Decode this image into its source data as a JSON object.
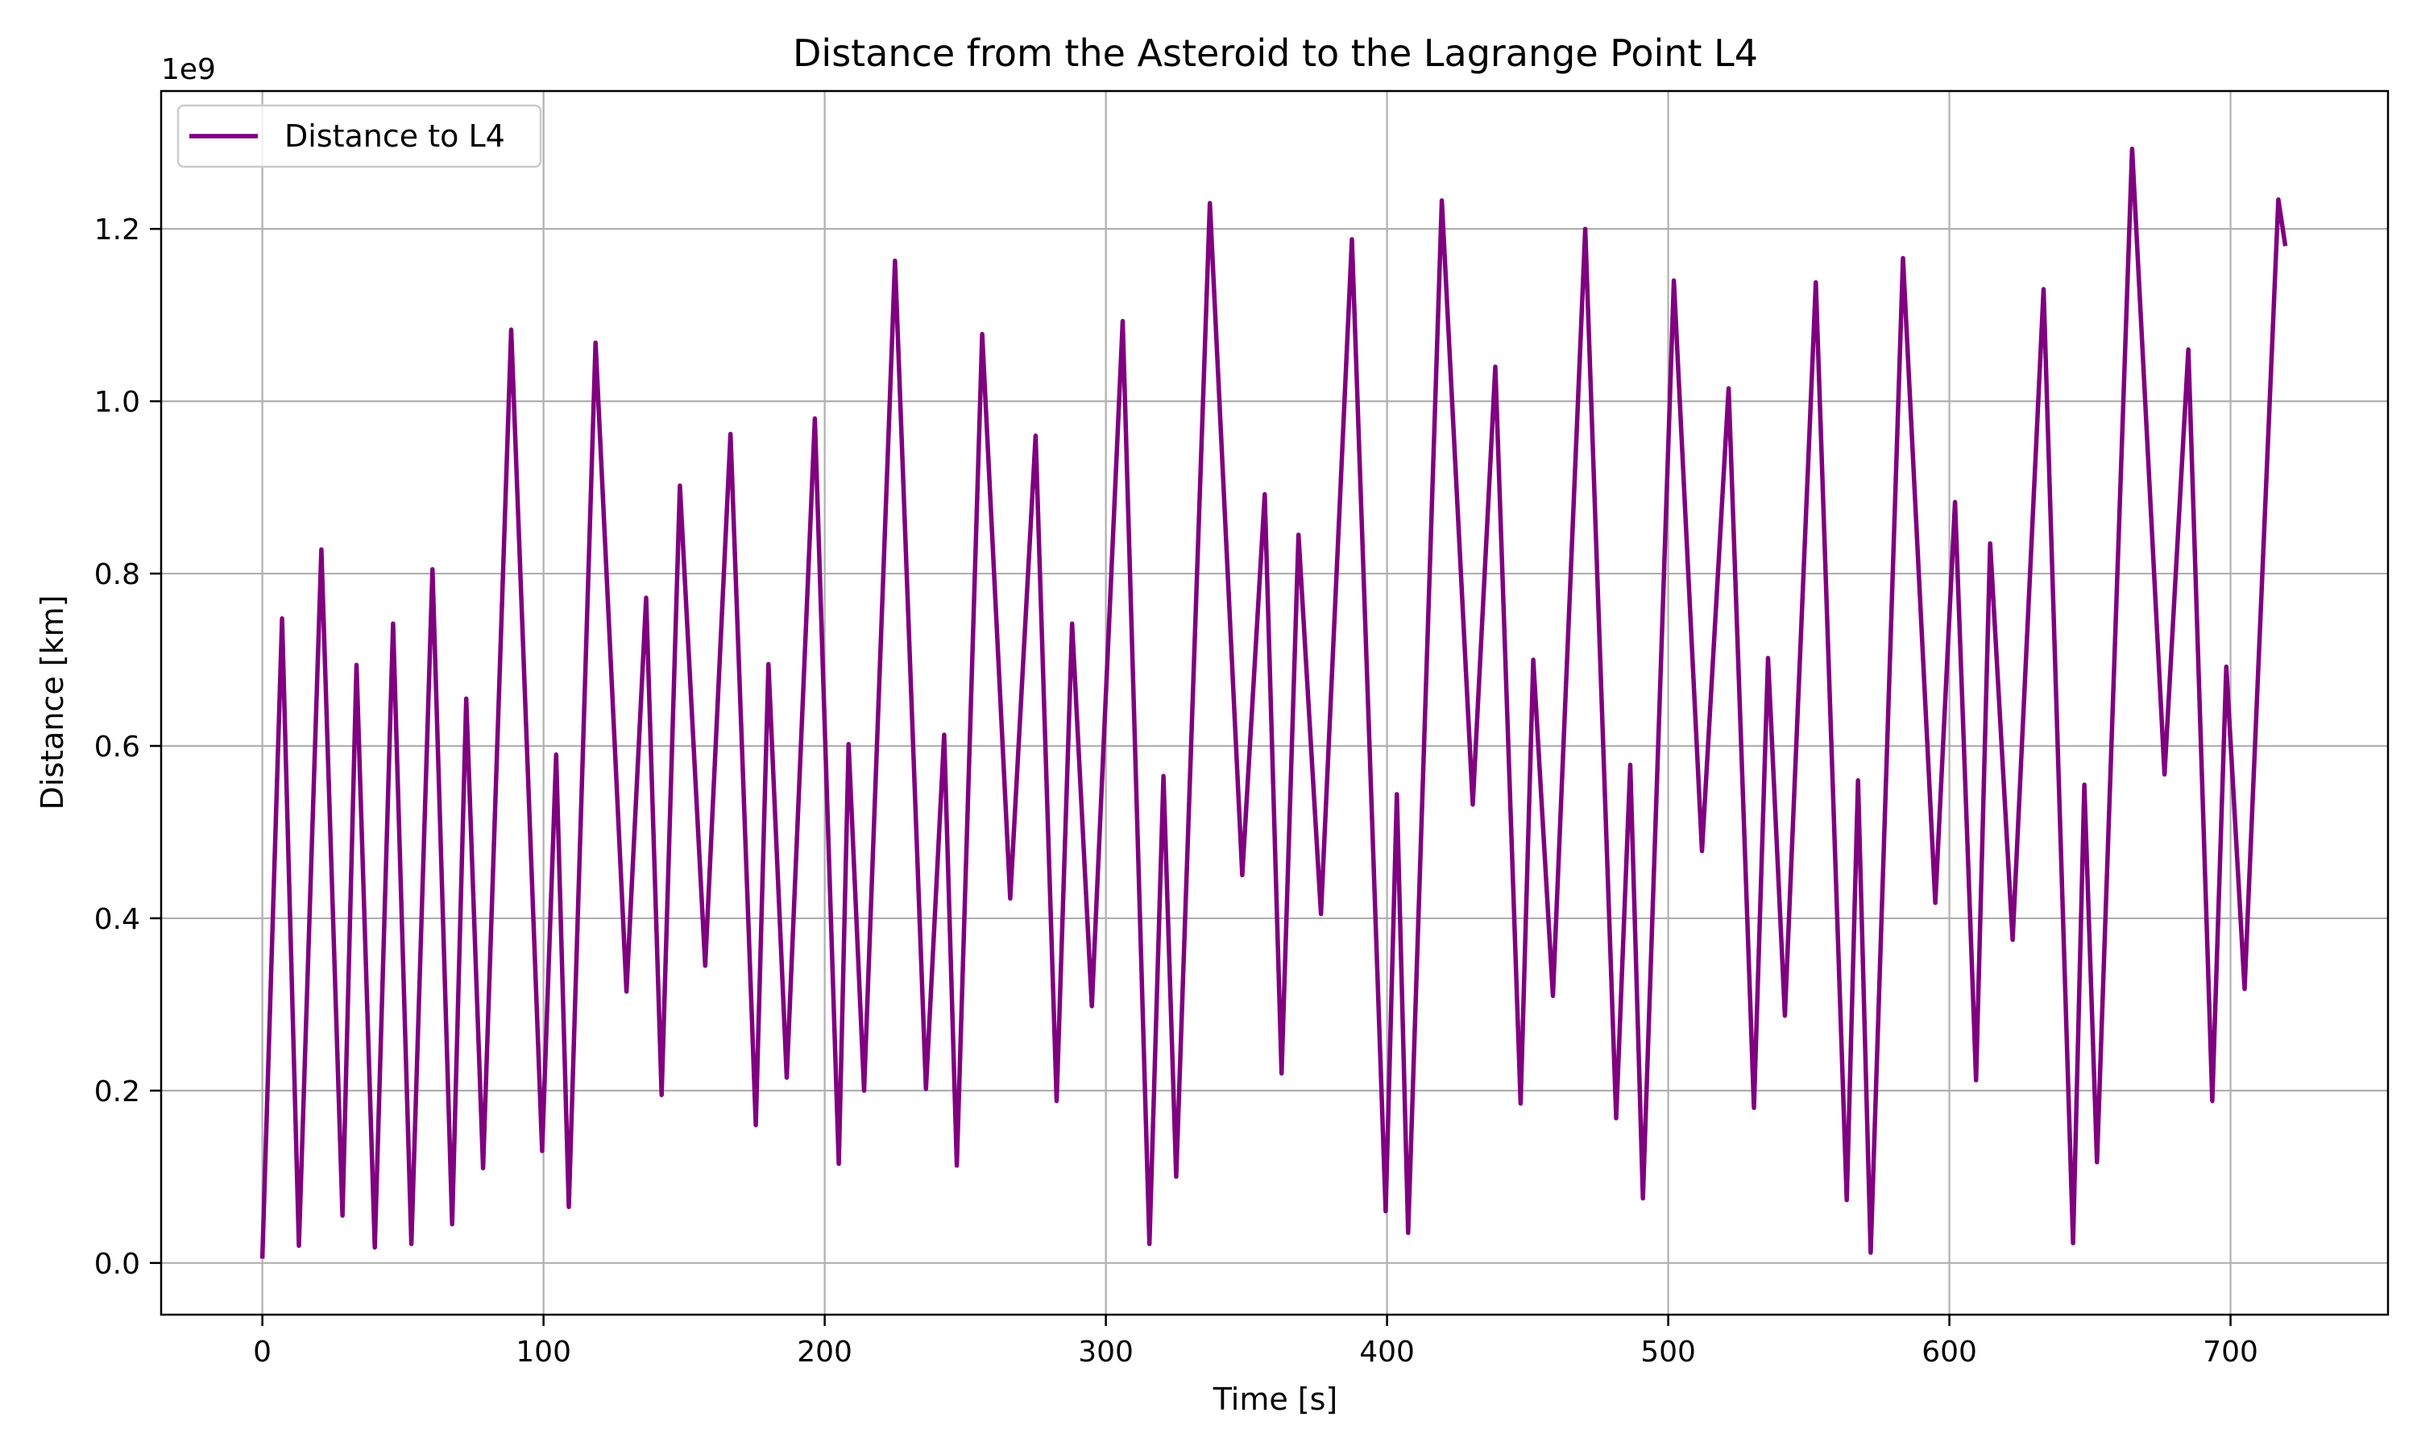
{
  "chart_data": {
    "type": "line",
    "title": "Distance from the Asteroid to the Lagrange Point L4",
    "xlabel": "Time [s]",
    "ylabel": "Distance [km]",
    "y_offset_label": "1e9",
    "xlim": [
      -36,
      756
    ],
    "ylim": [
      -0.06,
      1.36
    ],
    "x_ticks": [
      0,
      100,
      200,
      300,
      400,
      500,
      600,
      700
    ],
    "x_tick_labels": [
      "0",
      "100",
      "200",
      "300",
      "400",
      "500",
      "600",
      "700"
    ],
    "y_ticks": [
      0.0,
      0.2,
      0.4,
      0.6,
      0.8,
      1.0,
      1.2
    ],
    "y_tick_labels": [
      "0.0",
      "0.2",
      "0.4",
      "0.6",
      "0.8",
      "1.0",
      "1.2"
    ],
    "grid": true,
    "legend_position": "top-left",
    "series": [
      {
        "name": "Distance to L4",
        "color": "#800080",
        "points": [
          [
            0,
            0.005
          ],
          [
            7,
            0.748
          ],
          [
            13,
            0.02
          ],
          [
            21,
            0.828
          ],
          [
            28.5,
            0.055
          ],
          [
            33.5,
            0.694
          ],
          [
            40,
            0.018
          ],
          [
            46.5,
            0.742
          ],
          [
            53,
            0.022
          ],
          [
            60.5,
            0.805
          ],
          [
            67.5,
            0.045
          ],
          [
            72.5,
            0.655
          ],
          [
            78.5,
            0.11
          ],
          [
            88.5,
            1.083
          ],
          [
            99.5,
            0.13
          ],
          [
            104.5,
            0.59
          ],
          [
            109,
            0.065
          ],
          [
            118.5,
            1.068
          ],
          [
            129.5,
            0.315
          ],
          [
            136.5,
            0.772
          ],
          [
            142,
            0.195
          ],
          [
            148.5,
            0.902
          ],
          [
            157.5,
            0.345
          ],
          [
            166.5,
            0.962
          ],
          [
            175.5,
            0.16
          ],
          [
            180,
            0.695
          ],
          [
            186.5,
            0.215
          ],
          [
            196.5,
            0.98
          ],
          [
            205,
            0.115
          ],
          [
            208.5,
            0.602
          ],
          [
            214,
            0.2
          ],
          [
            225,
            1.163
          ],
          [
            236,
            0.202
          ],
          [
            242.5,
            0.613
          ],
          [
            247,
            0.113
          ],
          [
            256,
            1.078
          ],
          [
            266,
            0.423
          ],
          [
            275,
            0.96
          ],
          [
            282.5,
            0.188
          ],
          [
            288,
            0.742
          ],
          [
            295,
            0.298
          ],
          [
            306,
            1.093
          ],
          [
            315.5,
            0.022
          ],
          [
            320.5,
            0.565
          ],
          [
            325,
            0.1
          ],
          [
            337,
            1.23
          ],
          [
            348.5,
            0.45
          ],
          [
            356.5,
            0.892
          ],
          [
            362.5,
            0.22
          ],
          [
            368.5,
            0.845
          ],
          [
            376.5,
            0.405
          ],
          [
            387.5,
            1.188
          ],
          [
            399.5,
            0.06
          ],
          [
            403.5,
            0.544
          ],
          [
            407.5,
            0.035
          ],
          [
            419.5,
            1.233
          ],
          [
            430.5,
            0.532
          ],
          [
            438.5,
            1.04
          ],
          [
            447.5,
            0.185
          ],
          [
            452,
            0.7
          ],
          [
            459,
            0.31
          ],
          [
            470.5,
            1.2
          ],
          [
            481.5,
            0.168
          ],
          [
            486.5,
            0.578
          ],
          [
            491,
            0.075
          ],
          [
            502,
            1.14
          ],
          [
            512,
            0.478
          ],
          [
            521.5,
            1.015
          ],
          [
            530.5,
            0.18
          ],
          [
            535.5,
            0.702
          ],
          [
            541.5,
            0.287
          ],
          [
            552.5,
            1.138
          ],
          [
            563.5,
            0.073
          ],
          [
            567.5,
            0.56
          ],
          [
            572,
            0.012
          ],
          [
            583.5,
            1.166
          ],
          [
            595,
            0.418
          ],
          [
            602,
            0.883
          ],
          [
            609.5,
            0.212
          ],
          [
            614.5,
            0.835
          ],
          [
            622.5,
            0.375
          ],
          [
            633.5,
            1.13
          ],
          [
            644,
            0.023
          ],
          [
            648,
            0.555
          ],
          [
            652.5,
            0.117
          ],
          [
            665,
            1.293
          ],
          [
            676.5,
            0.567
          ],
          [
            685,
            1.06
          ],
          [
            693.5,
            0.188
          ],
          [
            698.5,
            0.692
          ],
          [
            705,
            0.318
          ],
          [
            717,
            1.234
          ],
          [
            719.5,
            1.18
          ]
        ]
      }
    ]
  }
}
